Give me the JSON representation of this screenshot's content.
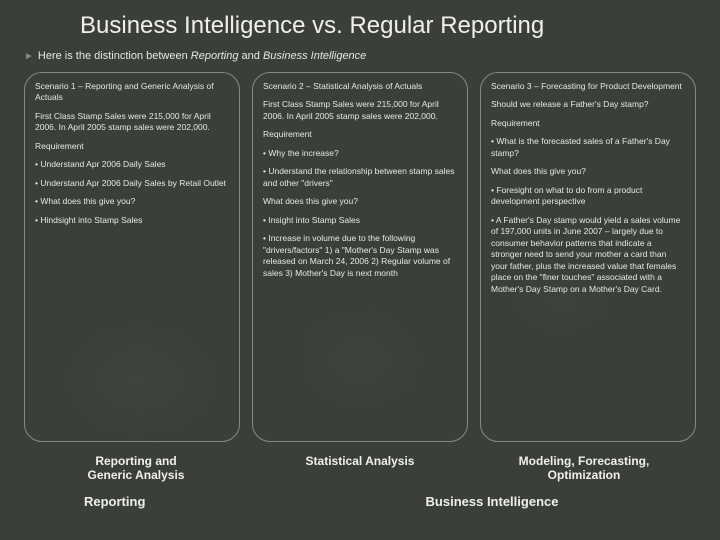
{
  "title": "Business Intelligence vs. Regular Reporting",
  "subtitle_prefix": "Here is the distinction between ",
  "subtitle_italic1": "Reporting",
  "subtitle_mid": " and ",
  "subtitle_italic2": "Business Intelligence",
  "col1": {
    "heading": "Scenario 1 – Reporting and Generic Analysis of Actuals",
    "body": "First Class Stamp Sales were 215,000 for April 2006. In April 2005 stamp sales were 202,000.",
    "req_label": "Requirement",
    "req1": "• Understand Apr 2006 Daily Sales",
    "req2": "• Understand Apr 2006 Daily Sales by Retail Outlet",
    "give_label": "• What does this give you?",
    "give1": "• Hindsight into Stamp Sales"
  },
  "col2": {
    "heading": "Scenario 2 – Statistical Analysis of Actuals",
    "body": "First Class Stamp Sales were 215,000 for April 2006. In April 2005 stamp sales were 202,000.",
    "req_label": "Requirement",
    "req1": "• Why the increase?",
    "req2": "• Understand the relationship between stamp sales and other \"drivers\"",
    "give_label": "What does this give you?",
    "give1": "• Insight into Stamp Sales",
    "give2": "• Increase in volume due to the following \"drivers/factors\" 1) a \"Mother's Day Stamp was released on March 24, 2006 2) Regular volume of sales 3) Mother's Day is next month"
  },
  "col3": {
    "heading": "Scenario 3 – Forecasting for Product Development",
    "body": "Should we release a Father's Day stamp?",
    "req_label": "Requirement",
    "req1": "• What is the forecasted sales of a Father's Day stamp?",
    "give_label": "What does this give you?",
    "give1": "• Foresight on what to do from a product development perspective",
    "give2": "• A Father's Day stamp would yield a sales volume of 197,000 units in June 2007 – largely due to consumer behavior patterns that indicate a stronger need to send your mother a card than your father, plus the increased value that females place on the \"finer touches\" associated with a Mother's Day Stamp on a Mother's Day Card."
  },
  "footer": {
    "r1c1a": "Reporting and",
    "r1c1b": "Generic Analysis",
    "r1c2": "Statistical Analysis",
    "r1c3a": "Modeling, Forecasting,",
    "r1c3b": "Optimization",
    "r2c1": "Reporting",
    "r2c2": "Business Intelligence"
  },
  "colors": {
    "bg": "#3a3f3a",
    "text": "#e8e8e0",
    "border": "#888888"
  }
}
